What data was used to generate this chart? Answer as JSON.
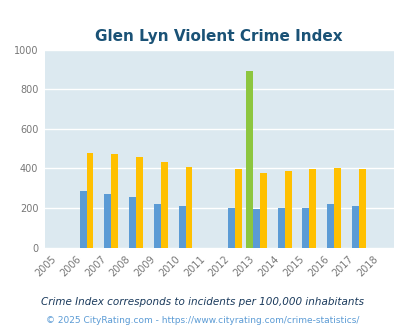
{
  "title": "Glen Lyn Violent Crime Index",
  "years": [
    2005,
    2006,
    2007,
    2008,
    2009,
    2010,
    2011,
    2012,
    2013,
    2014,
    2015,
    2016,
    2017,
    2018
  ],
  "glen_lyn": [
    0,
    0,
    0,
    0,
    0,
    0,
    0,
    0,
    890,
    0,
    0,
    0,
    0,
    0
  ],
  "virginia": [
    0,
    285,
    270,
    255,
    220,
    210,
    0,
    200,
    195,
    200,
    200,
    220,
    210,
    0
  ],
  "national": [
    0,
    475,
    470,
    455,
    430,
    408,
    0,
    397,
    375,
    385,
    397,
    404,
    398,
    0
  ],
  "glen_lyn_color": "#8dc63f",
  "virginia_color": "#5b9bd5",
  "national_color": "#ffc000",
  "bg_color": "#dce9f0",
  "title_color": "#1a5276",
  "grid_color": "#ffffff",
  "ylim": [
    0,
    1000
  ],
  "yticks": [
    0,
    200,
    400,
    600,
    800,
    1000
  ],
  "footnote1": "Crime Index corresponds to incidents per 100,000 inhabitants",
  "footnote2": "© 2025 CityRating.com - https://www.cityrating.com/crime-statistics/",
  "footnote1_color": "#1a3a5c",
  "footnote2_color": "#5b9bd5",
  "bar_width": 0.28
}
